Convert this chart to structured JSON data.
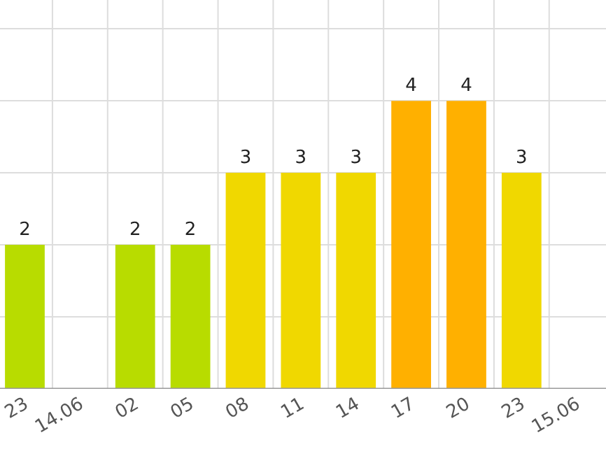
{
  "chart_data": {
    "type": "bar",
    "categories": [
      "23",
      "14.06",
      "02",
      "05",
      "08",
      "11",
      "14",
      "17",
      "20",
      "23",
      "15.06"
    ],
    "values": [
      2,
      null,
      2,
      2,
      3,
      3,
      3,
      4,
      4,
      3,
      null
    ],
    "colors": [
      "#b8dc00",
      null,
      "#b8dc00",
      "#b8dc00",
      "#f0d800",
      "#f0d800",
      "#f0d800",
      "#ffb000",
      "#ffb000",
      "#f0d800",
      null
    ],
    "ylim": [
      0,
      5.4
    ],
    "yticks": [
      {
        "value": 0,
        "label": null
      },
      {
        "value": 1,
        "label": null
      },
      {
        "value": 2,
        "label": null
      },
      {
        "value": 3,
        "label": null
      },
      {
        "value": 4,
        "label": null
      },
      {
        "value": 5,
        "label": null
      }
    ],
    "tick_labels": "x",
    "grid": true,
    "data_labels": true
  }
}
